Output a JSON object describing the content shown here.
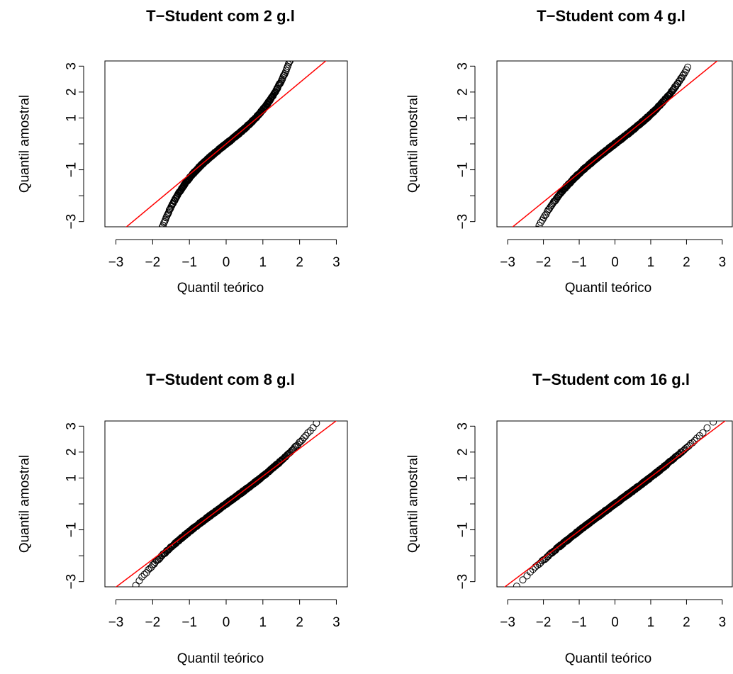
{
  "colors": {
    "points": "#000000",
    "reference_line": "#ff0000",
    "background": "#ffffff"
  },
  "chart_data": [
    {
      "type": "scatter",
      "subtype": "qq-plot",
      "title": "T−Student com 2 g.l",
      "xlabel": "Quantil teórico",
      "ylabel": "Quantil amostral",
      "xlim": [
        -3.3,
        3.3
      ],
      "ylim": [
        -3.2,
        3.2
      ],
      "xticks": [
        -3,
        -2,
        -1,
        0,
        1,
        2,
        3
      ],
      "yticks": [
        -3,
        -2,
        -1,
        0,
        1,
        2,
        3
      ],
      "xtick_labels": [
        "−3",
        "−2",
        "−1",
        "0",
        "1",
        "2",
        "3"
      ],
      "ytick_labels": [
        "−3",
        "",
        "−1",
        "",
        "1",
        "2",
        "3"
      ],
      "df": 2,
      "reference_line": {
        "slope": 1.18,
        "intercept": 0
      },
      "x_range": [
        -1.85,
        1.75
      ]
    },
    {
      "type": "scatter",
      "subtype": "qq-plot",
      "title": "T−Student com 4 g.l",
      "xlabel": "Quantil teórico",
      "ylabel": "Quantil amostral",
      "xlim": [
        -3.3,
        3.3
      ],
      "ylim": [
        -3.2,
        3.2
      ],
      "xticks": [
        -3,
        -2,
        -1,
        0,
        1,
        2,
        3
      ],
      "yticks": [
        -3,
        -2,
        -1,
        0,
        1,
        2,
        3
      ],
      "xtick_labels": [
        "−3",
        "−2",
        "−1",
        "0",
        "1",
        "2",
        "3"
      ],
      "ytick_labels": [
        "−3",
        "",
        "−1",
        "",
        "1",
        "2",
        "3"
      ],
      "df": 4,
      "reference_line": {
        "slope": 1.12,
        "intercept": 0
      },
      "x_range": [
        -2.2,
        2.05
      ]
    },
    {
      "type": "scatter",
      "subtype": "qq-plot",
      "title": "T−Student com 8 g.l",
      "xlabel": "Quantil teórico",
      "ylabel": "Quantil amostral",
      "xlim": [
        -3.3,
        3.3
      ],
      "ylim": [
        -3.2,
        3.2
      ],
      "xticks": [
        -3,
        -2,
        -1,
        0,
        1,
        2,
        3
      ],
      "yticks": [
        -3,
        -2,
        -1,
        0,
        1,
        2,
        3
      ],
      "xtick_labels": [
        "−3",
        "−2",
        "−1",
        "0",
        "1",
        "2",
        "3"
      ],
      "ytick_labels": [
        "−3",
        "",
        "−1",
        "",
        "1",
        "2",
        "3"
      ],
      "df": 8,
      "reference_line": {
        "slope": 1.07,
        "intercept": 0
      },
      "x_range": [
        -2.5,
        2.95
      ]
    },
    {
      "type": "scatter",
      "subtype": "qq-plot",
      "title": "T−Student com 16 g.l",
      "xlabel": "Quantil teórico",
      "ylabel": "Quantil amostral",
      "xlim": [
        -3.3,
        3.3
      ],
      "ylim": [
        -3.2,
        3.2
      ],
      "xticks": [
        -3,
        -2,
        -1,
        0,
        1,
        2,
        3
      ],
      "yticks": [
        -3,
        -2,
        -1,
        0,
        1,
        2,
        3
      ],
      "xtick_labels": [
        "−3",
        "−2",
        "−1",
        "0",
        "1",
        "2",
        "3"
      ],
      "ytick_labels": [
        "−3",
        "",
        "−1",
        "",
        "1",
        "2",
        "3"
      ],
      "df": 16,
      "reference_line": {
        "slope": 1.04,
        "intercept": 0
      },
      "x_range": [
        -2.95,
        3.05
      ]
    }
  ]
}
